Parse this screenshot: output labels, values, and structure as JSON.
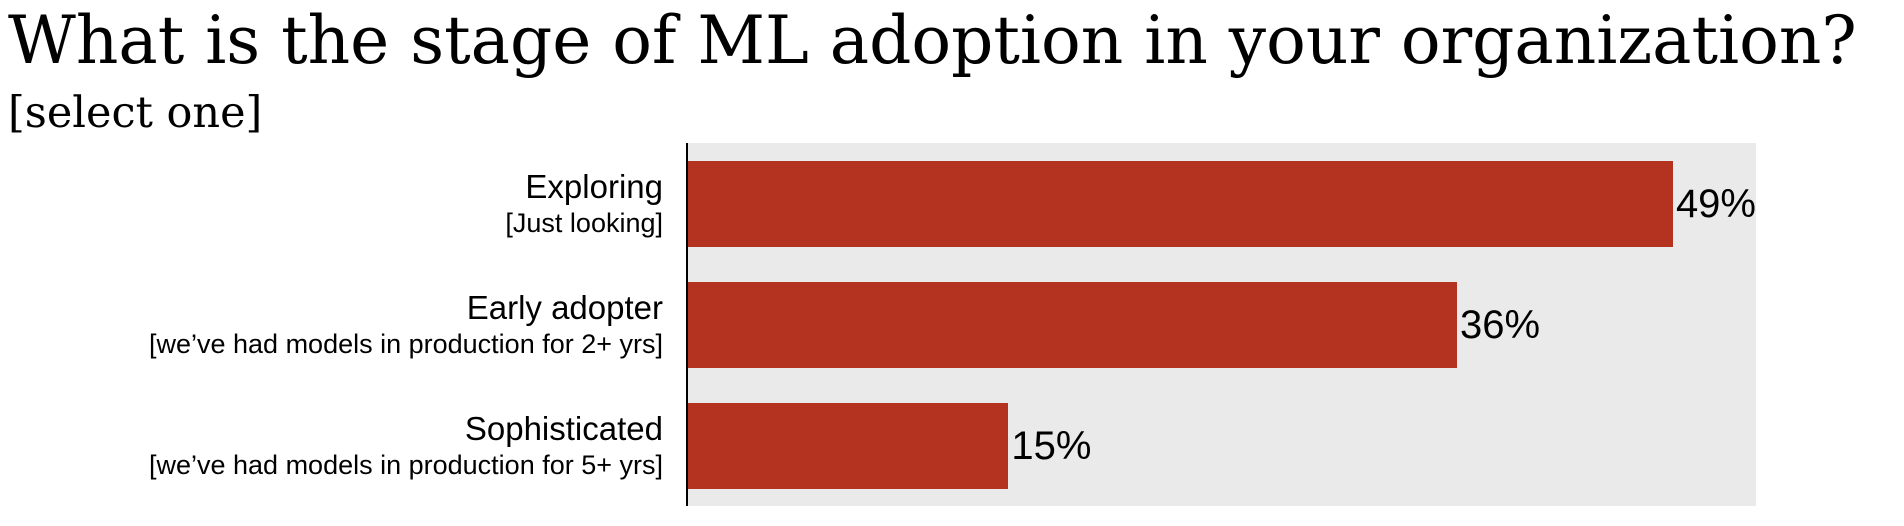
{
  "header": {
    "title": "What is the stage of ML adoption in your organization?",
    "subtitle": "[select one]"
  },
  "colors": {
    "bar": "#b33320",
    "plot_background": "#eaeaea",
    "axis": "#000000",
    "text": "#000000"
  },
  "chart_data": {
    "type": "bar",
    "orientation": "horizontal",
    "title": "What is the stage of ML adoption in your organization?",
    "subtitle": "[select one]",
    "categories": [
      "Exploring",
      "Early adopter",
      "Sophisticated"
    ],
    "category_sublabels": [
      "[Just looking]",
      "[we’ve had models in production for 2+ yrs]",
      "[we’ve had models in production for 5+ yrs]"
    ],
    "values": [
      49,
      36,
      15
    ],
    "value_labels": [
      "49%",
      "36%",
      "15%"
    ],
    "unit": "%",
    "xlim": [
      0,
      50
    ],
    "grid": false,
    "legend": false,
    "plot_background": "#eaeaea",
    "bar_color": "#b33320"
  }
}
